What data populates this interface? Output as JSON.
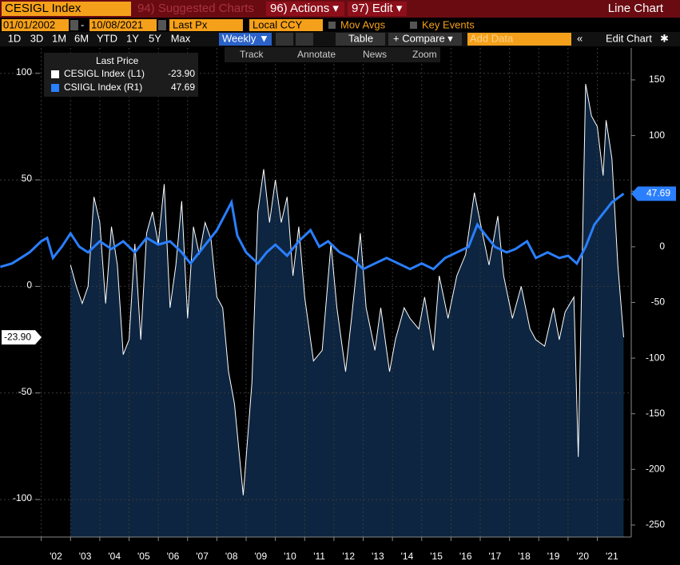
{
  "toolbar": {
    "security": "CESIGL Index",
    "suggested": "94) Suggested Charts",
    "actions": "96) Actions ▾",
    "edit": "97) Edit ▾",
    "chart_type": "Line Chart",
    "start_date": "01/01/2002",
    "date_sep": "-",
    "end_date": "10/08/2021",
    "field": "Last Px",
    "currency": "Local CCY",
    "mov_avgs": "Mov Avgs",
    "key_events": "Key Events",
    "periods": [
      "1D",
      "3D",
      "1M",
      "6M",
      "YTD",
      "1Y",
      "5Y",
      "Max"
    ],
    "frequency": "Weekly ▼",
    "table": "Table",
    "compare": "+ Compare ▾",
    "add_data": "Add Data",
    "edit_chart": "Edit Chart",
    "tools": [
      "Track",
      "Annotate",
      "News",
      "Zoom"
    ]
  },
  "chart_data": {
    "type": "line",
    "legend_title": "Last Price",
    "grid": true,
    "xlim": [
      2000.59,
      2022.16
    ],
    "xticks": [
      {
        "value": 2002,
        "label": "'02"
      },
      {
        "value": 2003,
        "label": "'03"
      },
      {
        "value": 2004,
        "label": "'04"
      },
      {
        "value": 2005,
        "label": "'05"
      },
      {
        "value": 2006,
        "label": "'06"
      },
      {
        "value": 2007,
        "label": "'07"
      },
      {
        "value": 2008,
        "label": "'08"
      },
      {
        "value": 2009,
        "label": "'09"
      },
      {
        "value": 2010,
        "label": "'10"
      },
      {
        "value": 2011,
        "label": "'11"
      },
      {
        "value": 2012,
        "label": "'12"
      },
      {
        "value": 2013,
        "label": "'13"
      },
      {
        "value": 2014,
        "label": "'14"
      },
      {
        "value": 2015,
        "label": "'15"
      },
      {
        "value": 2016,
        "label": "'16"
      },
      {
        "value": 2017,
        "label": "'17"
      },
      {
        "value": 2018,
        "label": "'18"
      },
      {
        "value": 2019,
        "label": "'19"
      },
      {
        "value": 2020,
        "label": "'20"
      },
      {
        "value": 2021,
        "label": "'21"
      }
    ],
    "ylim": [
      -117.6,
      111.9
    ],
    "yticks": [
      -100,
      -50,
      0,
      50,
      100
    ],
    "y2lim": [
      -260.8,
      178.7
    ],
    "y2ticks": [
      -250,
      -200,
      -150,
      -100,
      -50,
      0,
      50,
      100,
      150
    ],
    "series": [
      {
        "name": "CESIGL Index (L1)",
        "color": "#ffffff",
        "fill": "#0d2540",
        "axis": "y",
        "x": [
          2003.0,
          2003.2,
          2003.4,
          2003.6,
          2003.8,
          2004.0,
          2004.2,
          2004.4,
          2004.6,
          2004.8,
          2005.0,
          2005.2,
          2005.4,
          2005.6,
          2005.8,
          2006.0,
          2006.2,
          2006.4,
          2006.6,
          2006.8,
          2007.0,
          2007.2,
          2007.4,
          2007.6,
          2007.8,
          2008.0,
          2008.2,
          2008.4,
          2008.6,
          2008.9,
          2009.2,
          2009.4,
          2009.6,
          2009.8,
          2010.0,
          2010.2,
          2010.4,
          2010.6,
          2010.8,
          2011.0,
          2011.3,
          2011.6,
          2011.9,
          2012.1,
          2012.4,
          2012.6,
          2012.9,
          2013.1,
          2013.4,
          2013.6,
          2013.9,
          2014.1,
          2014.4,
          2014.6,
          2014.9,
          2015.1,
          2015.4,
          2015.6,
          2015.9,
          2016.2,
          2016.5,
          2016.8,
          2017.0,
          2017.3,
          2017.6,
          2017.8,
          2018.1,
          2018.4,
          2018.7,
          2018.9,
          2019.2,
          2019.5,
          2019.7,
          2019.9,
          2020.2,
          2020.35,
          2020.6,
          2020.8,
          2021.0,
          2021.2,
          2021.3,
          2021.5,
          2021.7,
          2021.9
        ],
        "values": [
          10,
          0,
          -8,
          0,
          42,
          30,
          -8,
          28,
          10,
          -32,
          -25,
          20,
          -25,
          25,
          35,
          20,
          48,
          -10,
          10,
          40,
          -15,
          28,
          15,
          30,
          22,
          -5,
          -10,
          -40,
          -55,
          -98,
          -45,
          35,
          55,
          30,
          50,
          30,
          42,
          5,
          28,
          -5,
          -35,
          -30,
          20,
          -10,
          -40,
          -15,
          25,
          -10,
          -30,
          -10,
          -40,
          -25,
          -10,
          -15,
          -20,
          -5,
          -30,
          5,
          -15,
          5,
          15,
          44,
          30,
          10,
          33,
          5,
          -15,
          0,
          -20,
          -25,
          -28,
          -10,
          -25,
          -12,
          -5,
          -80,
          95,
          80,
          75,
          52,
          78,
          60,
          10,
          -23.9
        ],
        "value_labels": [
          null,
          null,
          null,
          null,
          null,
          null,
          null,
          null,
          null,
          null,
          null,
          null,
          null,
          null,
          null,
          null,
          null,
          null,
          null,
          null,
          null,
          null,
          null,
          null,
          null,
          null,
          null,
          null,
          null,
          null,
          null,
          null,
          null,
          null,
          null,
          null,
          null,
          null,
          null,
          null,
          null,
          null,
          null,
          null,
          null,
          null,
          null,
          null,
          null,
          null,
          null,
          null,
          null,
          null,
          null,
          null,
          null,
          null,
          null,
          null,
          null,
          null,
          null,
          null,
          null,
          null,
          null,
          null,
          null,
          null,
          null,
          null,
          null,
          null,
          null,
          null,
          null,
          null,
          null,
          null,
          null,
          null,
          null,
          "-23.90"
        ]
      },
      {
        "name": "CSIIGL Index (R1)",
        "color": "#2a7fff",
        "axis": "y2",
        "x": [
          2000.6,
          2001.0,
          2001.3,
          2001.6,
          2002.0,
          2002.2,
          2002.4,
          2002.7,
          2003.0,
          2003.3,
          2003.6,
          2004.0,
          2004.4,
          2004.8,
          2005.2,
          2005.6,
          2006.0,
          2006.4,
          2006.8,
          2007.1,
          2007.4,
          2007.7,
          2008.0,
          2008.3,
          2008.5,
          2008.7,
          2009.0,
          2009.4,
          2009.7,
          2010.0,
          2010.4,
          2010.8,
          2011.2,
          2011.5,
          2011.8,
          2012.2,
          2012.6,
          2013.0,
          2013.4,
          2013.8,
          2014.2,
          2014.6,
          2015.0,
          2015.4,
          2015.8,
          2016.2,
          2016.6,
          2016.9,
          2017.2,
          2017.5,
          2017.9,
          2018.2,
          2018.6,
          2018.9,
          2019.3,
          2019.7,
          2020.0,
          2020.3,
          2020.6,
          2020.9,
          2021.2,
          2021.5,
          2021.9
        ],
        "values": [
          -18,
          -15,
          -10,
          -5,
          5,
          8,
          -10,
          0,
          12,
          0,
          -5,
          5,
          -2,
          5,
          -5,
          8,
          2,
          5,
          -5,
          -15,
          -5,
          5,
          15,
          30,
          40,
          10,
          -5,
          -15,
          -5,
          2,
          -8,
          5,
          15,
          0,
          5,
          -5,
          -10,
          -20,
          -15,
          -10,
          -15,
          -20,
          -15,
          -20,
          -10,
          -5,
          0,
          20,
          10,
          0,
          -5,
          -2,
          5,
          -10,
          -5,
          -10,
          -8,
          -15,
          0,
          20,
          30,
          40,
          47.69
        ],
        "value_labels": [
          null,
          null,
          null,
          null,
          null,
          null,
          null,
          null,
          null,
          null,
          null,
          null,
          null,
          null,
          null,
          null,
          null,
          null,
          null,
          null,
          null,
          null,
          null,
          null,
          null,
          null,
          null,
          null,
          null,
          null,
          null,
          null,
          null,
          null,
          null,
          null,
          null,
          null,
          null,
          null,
          null,
          null,
          null,
          null,
          null,
          null,
          null,
          null,
          null,
          null,
          null,
          null,
          null,
          null,
          null,
          null,
          null,
          null,
          null,
          null,
          null,
          null,
          "47.69"
        ]
      }
    ]
  }
}
